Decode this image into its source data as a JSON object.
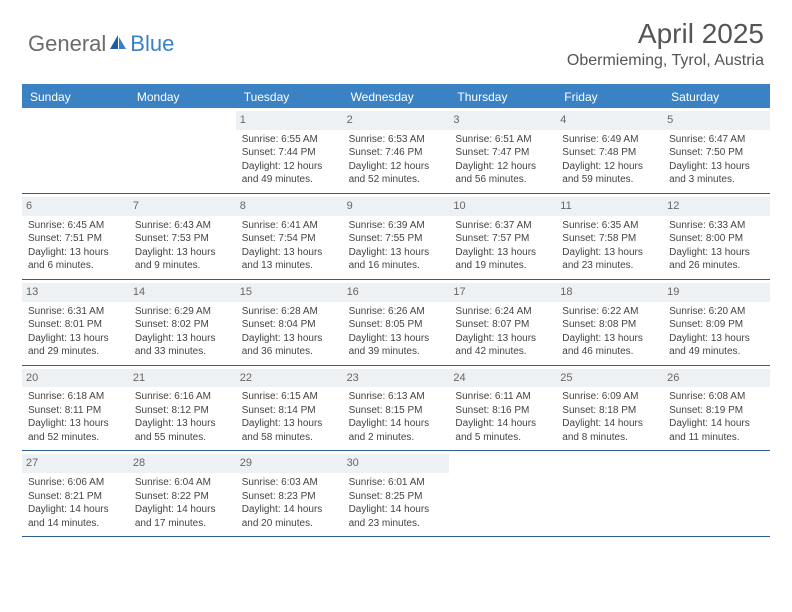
{
  "logo": {
    "text1": "General",
    "text2": "Blue"
  },
  "title": "April 2025",
  "location": "Obermieming, Tyrol, Austria",
  "colors": {
    "header_bg": "#3b82c4",
    "header_text": "#ffffff",
    "daynum_bg": "#eef1f3",
    "border": "#2f5f8f",
    "text": "#444444",
    "title_color": "#555555"
  },
  "dayNames": [
    "Sunday",
    "Monday",
    "Tuesday",
    "Wednesday",
    "Thursday",
    "Friday",
    "Saturday"
  ],
  "weeks": [
    [
      null,
      null,
      {
        "n": "1",
        "sr": "6:55 AM",
        "ss": "7:44 PM",
        "dl": "12 hours and 49 minutes."
      },
      {
        "n": "2",
        "sr": "6:53 AM",
        "ss": "7:46 PM",
        "dl": "12 hours and 52 minutes."
      },
      {
        "n": "3",
        "sr": "6:51 AM",
        "ss": "7:47 PM",
        "dl": "12 hours and 56 minutes."
      },
      {
        "n": "4",
        "sr": "6:49 AM",
        "ss": "7:48 PM",
        "dl": "12 hours and 59 minutes."
      },
      {
        "n": "5",
        "sr": "6:47 AM",
        "ss": "7:50 PM",
        "dl": "13 hours and 3 minutes."
      }
    ],
    [
      {
        "n": "6",
        "sr": "6:45 AM",
        "ss": "7:51 PM",
        "dl": "13 hours and 6 minutes."
      },
      {
        "n": "7",
        "sr": "6:43 AM",
        "ss": "7:53 PM",
        "dl": "13 hours and 9 minutes."
      },
      {
        "n": "8",
        "sr": "6:41 AM",
        "ss": "7:54 PM",
        "dl": "13 hours and 13 minutes."
      },
      {
        "n": "9",
        "sr": "6:39 AM",
        "ss": "7:55 PM",
        "dl": "13 hours and 16 minutes."
      },
      {
        "n": "10",
        "sr": "6:37 AM",
        "ss": "7:57 PM",
        "dl": "13 hours and 19 minutes."
      },
      {
        "n": "11",
        "sr": "6:35 AM",
        "ss": "7:58 PM",
        "dl": "13 hours and 23 minutes."
      },
      {
        "n": "12",
        "sr": "6:33 AM",
        "ss": "8:00 PM",
        "dl": "13 hours and 26 minutes."
      }
    ],
    [
      {
        "n": "13",
        "sr": "6:31 AM",
        "ss": "8:01 PM",
        "dl": "13 hours and 29 minutes."
      },
      {
        "n": "14",
        "sr": "6:29 AM",
        "ss": "8:02 PM",
        "dl": "13 hours and 33 minutes."
      },
      {
        "n": "15",
        "sr": "6:28 AM",
        "ss": "8:04 PM",
        "dl": "13 hours and 36 minutes."
      },
      {
        "n": "16",
        "sr": "6:26 AM",
        "ss": "8:05 PM",
        "dl": "13 hours and 39 minutes."
      },
      {
        "n": "17",
        "sr": "6:24 AM",
        "ss": "8:07 PM",
        "dl": "13 hours and 42 minutes."
      },
      {
        "n": "18",
        "sr": "6:22 AM",
        "ss": "8:08 PM",
        "dl": "13 hours and 46 minutes."
      },
      {
        "n": "19",
        "sr": "6:20 AM",
        "ss": "8:09 PM",
        "dl": "13 hours and 49 minutes."
      }
    ],
    [
      {
        "n": "20",
        "sr": "6:18 AM",
        "ss": "8:11 PM",
        "dl": "13 hours and 52 minutes."
      },
      {
        "n": "21",
        "sr": "6:16 AM",
        "ss": "8:12 PM",
        "dl": "13 hours and 55 minutes."
      },
      {
        "n": "22",
        "sr": "6:15 AM",
        "ss": "8:14 PM",
        "dl": "13 hours and 58 minutes."
      },
      {
        "n": "23",
        "sr": "6:13 AM",
        "ss": "8:15 PM",
        "dl": "14 hours and 2 minutes."
      },
      {
        "n": "24",
        "sr": "6:11 AM",
        "ss": "8:16 PM",
        "dl": "14 hours and 5 minutes."
      },
      {
        "n": "25",
        "sr": "6:09 AM",
        "ss": "8:18 PM",
        "dl": "14 hours and 8 minutes."
      },
      {
        "n": "26",
        "sr": "6:08 AM",
        "ss": "8:19 PM",
        "dl": "14 hours and 11 minutes."
      }
    ],
    [
      {
        "n": "27",
        "sr": "6:06 AM",
        "ss": "8:21 PM",
        "dl": "14 hours and 14 minutes."
      },
      {
        "n": "28",
        "sr": "6:04 AM",
        "ss": "8:22 PM",
        "dl": "14 hours and 17 minutes."
      },
      {
        "n": "29",
        "sr": "6:03 AM",
        "ss": "8:23 PM",
        "dl": "14 hours and 20 minutes."
      },
      {
        "n": "30",
        "sr": "6:01 AM",
        "ss": "8:25 PM",
        "dl": "14 hours and 23 minutes."
      },
      null,
      null,
      null
    ]
  ],
  "labels": {
    "sunrise": "Sunrise:",
    "sunset": "Sunset:",
    "daylight": "Daylight:"
  }
}
